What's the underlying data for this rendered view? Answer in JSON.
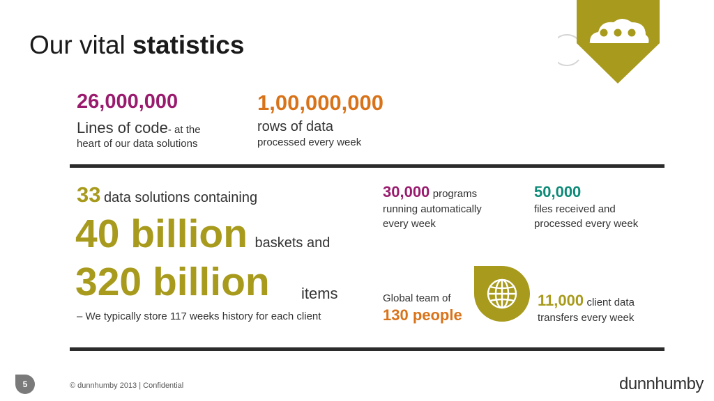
{
  "title": {
    "regular": "Our vital ",
    "bold": "statistics"
  },
  "stat_lines": {
    "number": "26,000,000",
    "label": "Lines of code",
    "suffix": "- at the",
    "line2": "heart of our data solutions"
  },
  "stat_rows": {
    "number": "1,00,000,000",
    "label": "rows of data",
    "line2": "processed every week"
  },
  "stat_solutions": {
    "count": "33",
    "count_text": "data solutions containing",
    "baskets": "40 billion",
    "baskets_text": "baskets and",
    "items": "320 billion",
    "items_text": "items",
    "note": "– We typically store 117 weeks history for each client"
  },
  "stat_programs": {
    "number": "30,000",
    "label": "programs",
    "line2": "running automatically",
    "line3": "every week"
  },
  "stat_files": {
    "number": "50,000",
    "line2": "files received and",
    "line3": "processed every week"
  },
  "stat_team": {
    "label": "Global team of",
    "number": "130 people"
  },
  "stat_transfers": {
    "number": "11,000",
    "label": "client data",
    "line2": "transfers every week"
  },
  "footer": {
    "page": "5",
    "text": "© dunnhumby 2013  |  Confidential",
    "brand": "dunnhumby"
  },
  "colors": {
    "olive": "#a79a1c",
    "purple": "#9a1b6e",
    "orange": "#d9731a",
    "teal": "#0d8a78"
  },
  "icons": [
    "cloud-icon",
    "globe-icon"
  ]
}
